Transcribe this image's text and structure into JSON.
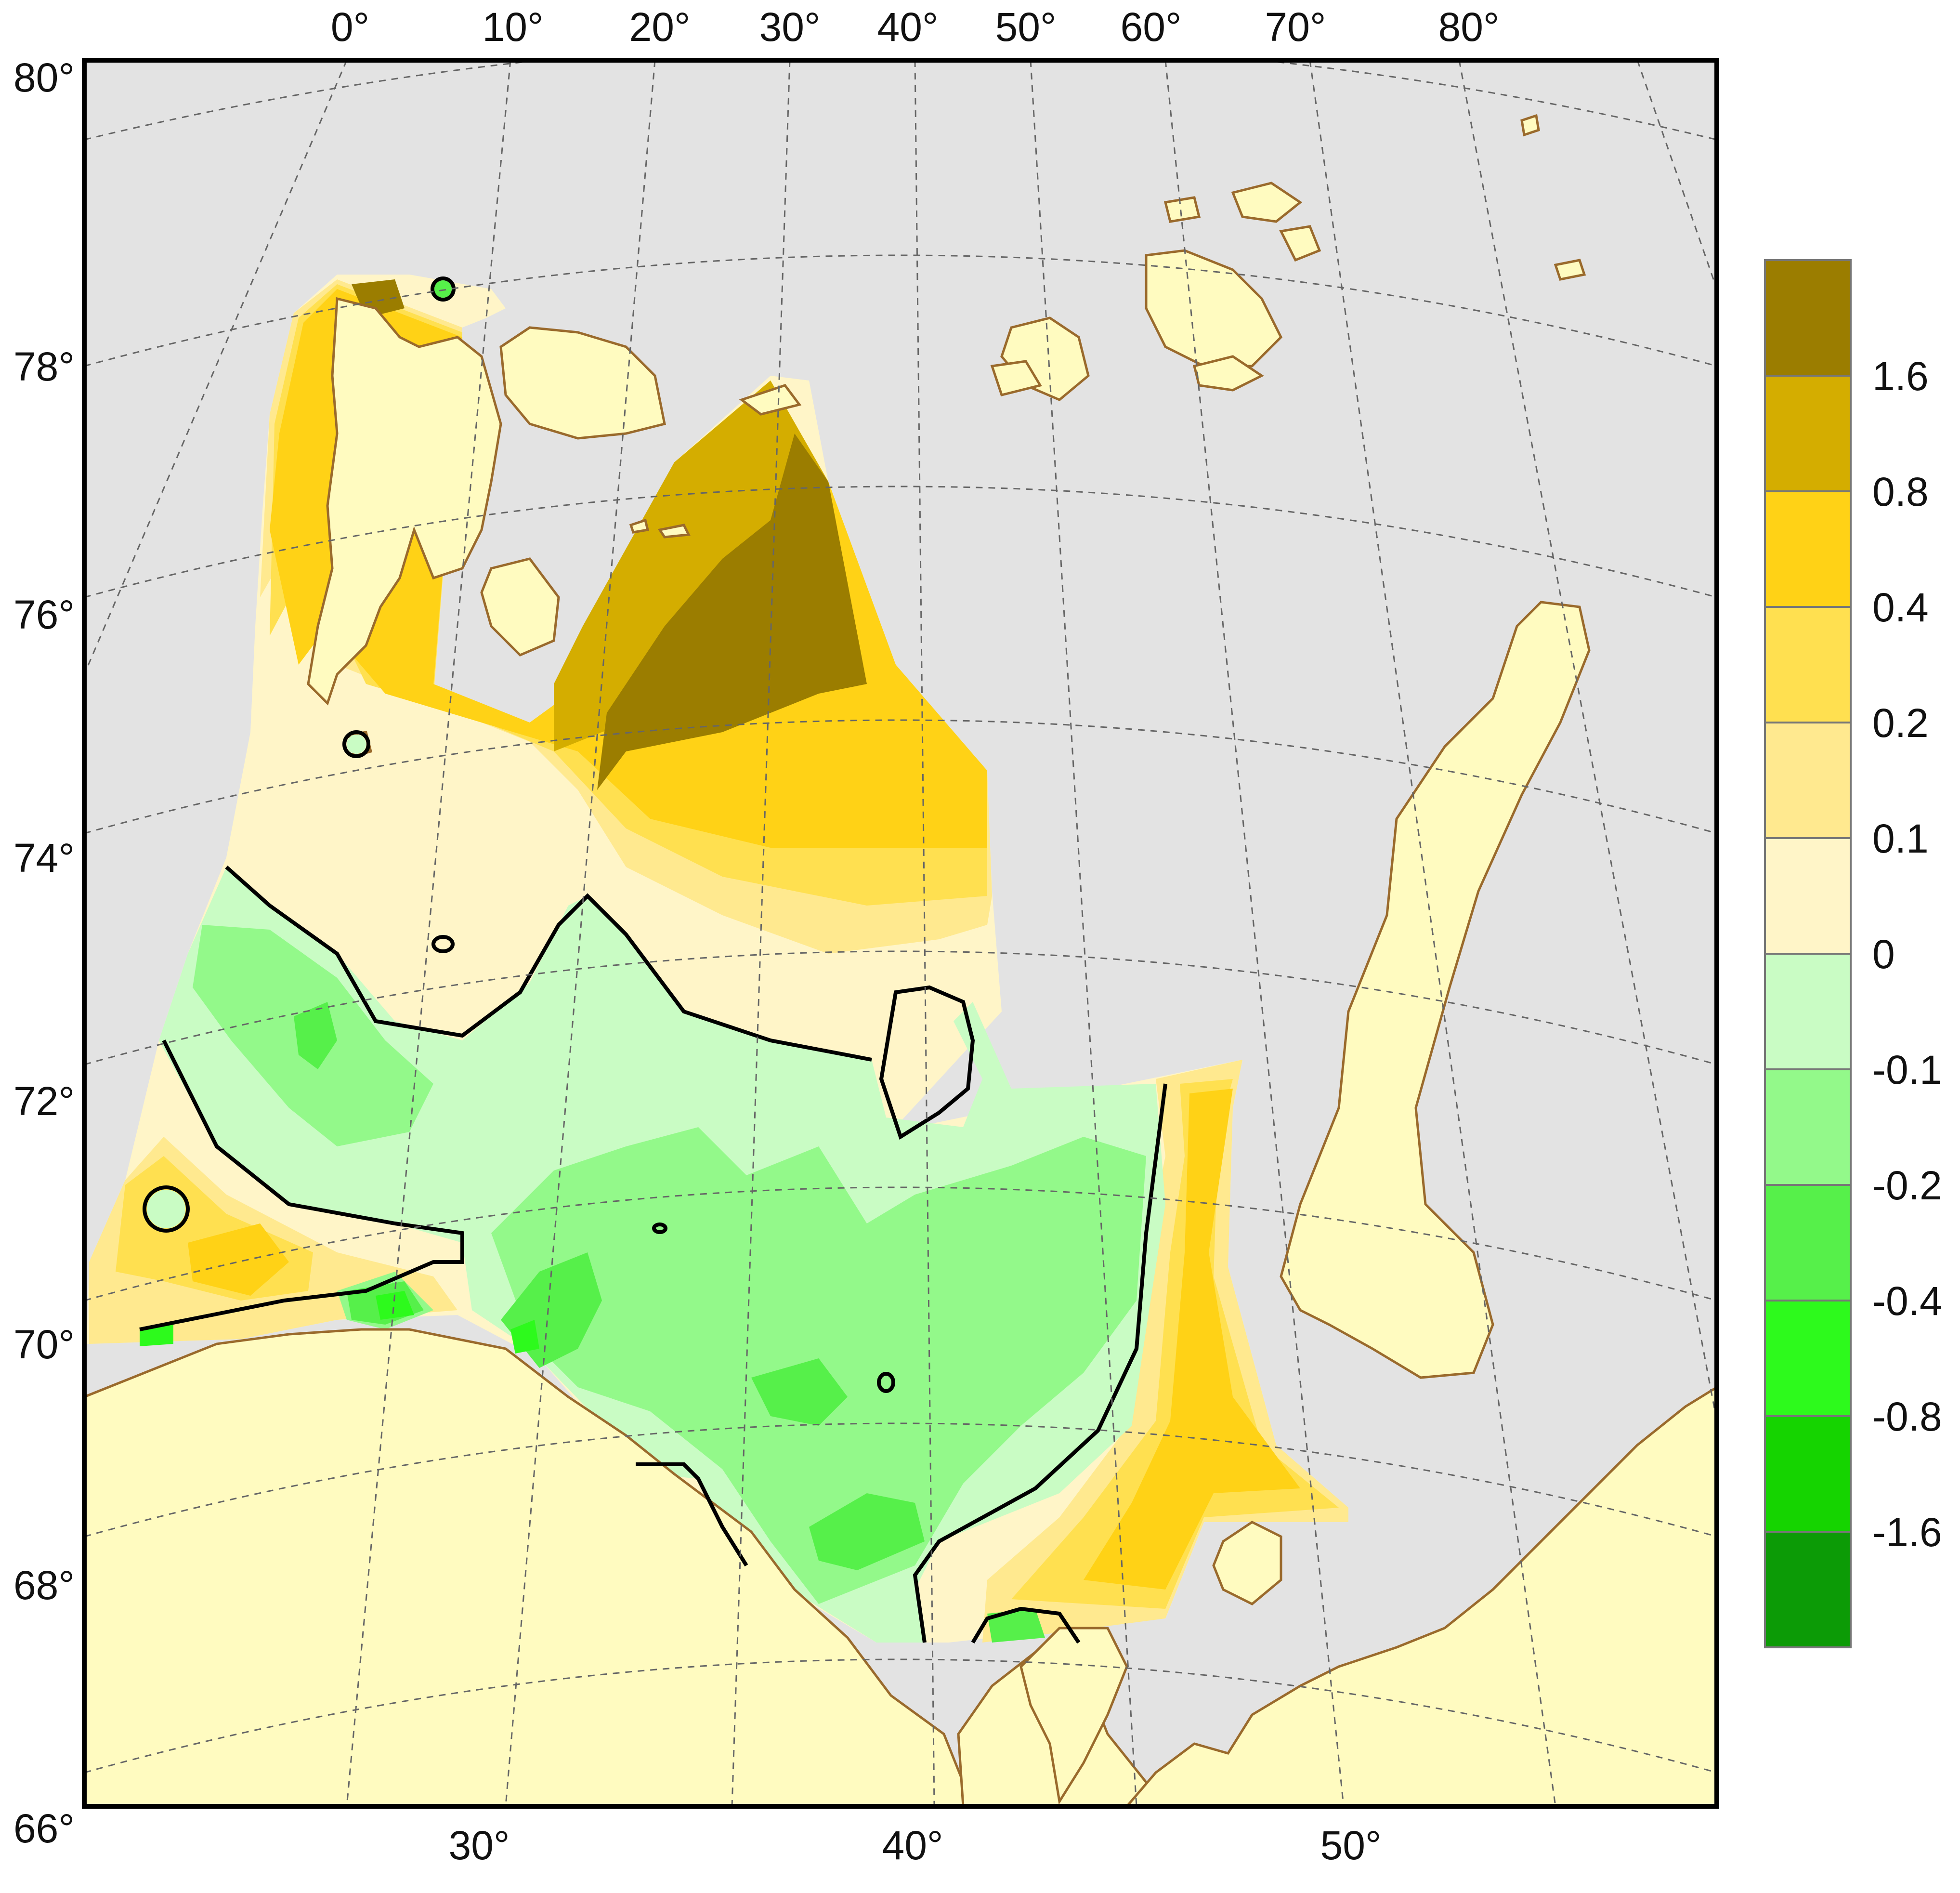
{
  "map": {
    "colors": {
      "ocean": "#e3e3e3",
      "land": "#fffbc0",
      "coast": "#9a6a2c",
      "grid": "#666666",
      "zero_contour": "#000000"
    },
    "top_longitude_labels": [
      "0°",
      "10°",
      "20°",
      "30°",
      "40°",
      "50°",
      "60°",
      "70°",
      "80°"
    ],
    "bottom_longitude_labels": [
      "30°",
      "40°",
      "50°"
    ],
    "latitude_labels": [
      "80°",
      "78°",
      "76°",
      "74°",
      "72°",
      "70°",
      "68°",
      "66°"
    ]
  },
  "legend": {
    "labels": [
      "1.6",
      "0.8",
      "0.4",
      "0.2",
      "0.1",
      "0",
      "-0.1",
      "-0.2",
      "-0.4",
      "-0.8",
      "-1.6"
    ],
    "colors": [
      "#9b7d00",
      "#d4ad00",
      "#ffd216",
      "#ffe050",
      "#ffe98f",
      "#fff5c8",
      "#c9fcc4",
      "#93f98a",
      "#56f04a",
      "#2dfa1c",
      "#15d400",
      "#0c9b06"
    ]
  }
}
